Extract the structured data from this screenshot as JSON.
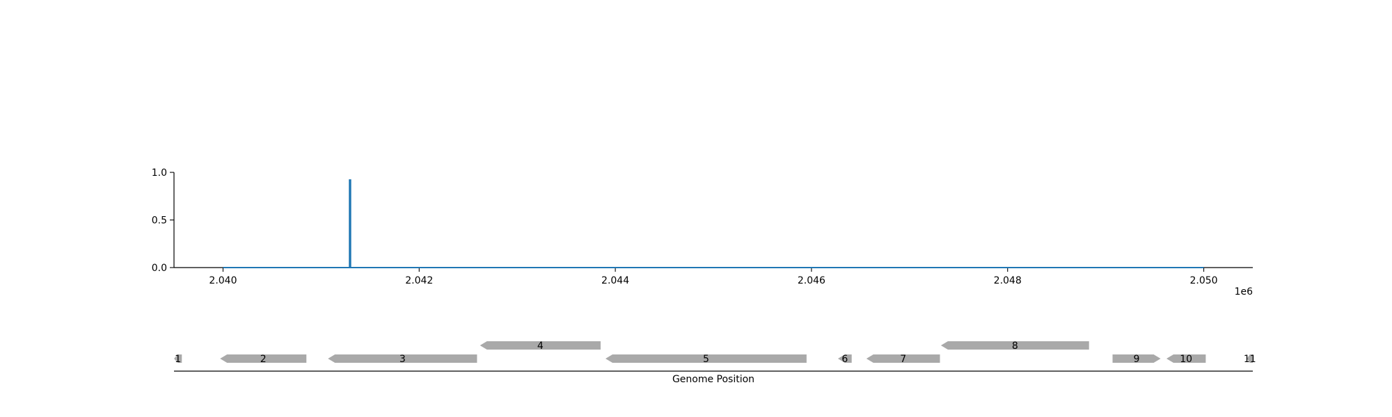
{
  "chart_data": [
    {
      "type": "line",
      "name": "coverage-track",
      "xlim": [
        2039500,
        2050500
      ],
      "ylim": [
        0,
        1.0
      ],
      "x_ticks": [
        2040000,
        2042000,
        2044000,
        2046000,
        2048000,
        2050000
      ],
      "x_tick_labels": [
        "2.040",
        "2.042",
        "2.044",
        "2.046",
        "2.048",
        "2.050"
      ],
      "x_offset_label": "1e6",
      "y_ticks": [
        0.0,
        0.5,
        1.0
      ],
      "y_tick_labels": [
        "0.0",
        "0.5",
        "1.0"
      ],
      "grid": false,
      "series_color": "#1f77b4",
      "series": [
        {
          "x": [
            2040000,
            2041290,
            2041290,
            2041300,
            2041300,
            2050000
          ],
          "y": [
            0,
            0,
            0.92,
            0.92,
            0,
            0
          ]
        }
      ]
    },
    {
      "type": "gene-track",
      "xlabel": "Genome Position",
      "xlim": [
        2039500,
        2050500
      ],
      "feature_color": "#a9a9a9",
      "genes": [
        {
          "label": "1",
          "start": 2039500,
          "end": 2039580,
          "strand": "-",
          "row": 0
        },
        {
          "label": "2",
          "start": 2039970,
          "end": 2040850,
          "strand": "-",
          "row": 0
        },
        {
          "label": "3",
          "start": 2041070,
          "end": 2042590,
          "strand": "-",
          "row": 0
        },
        {
          "label": "4",
          "start": 2042620,
          "end": 2043850,
          "strand": "-",
          "row": 1
        },
        {
          "label": "5",
          "start": 2043900,
          "end": 2045950,
          "strand": "-",
          "row": 0
        },
        {
          "label": "6",
          "start": 2046270,
          "end": 2046410,
          "strand": "-",
          "row": 0
        },
        {
          "label": "7",
          "start": 2046560,
          "end": 2047310,
          "strand": "-",
          "row": 0
        },
        {
          "label": "8",
          "start": 2047320,
          "end": 2048830,
          "strand": "-",
          "row": 1
        },
        {
          "label": "9",
          "start": 2049070,
          "end": 2049560,
          "strand": "+",
          "row": 0
        },
        {
          "label": "10",
          "start": 2049620,
          "end": 2050020,
          "strand": "-",
          "row": 0
        },
        {
          "label": "11",
          "start": 2050440,
          "end": 2050500,
          "strand": "-",
          "row": 0
        }
      ]
    }
  ]
}
